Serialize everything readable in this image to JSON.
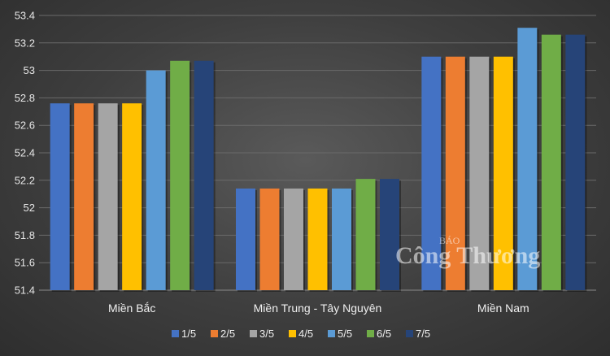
{
  "chart_data": {
    "type": "bar",
    "categories": [
      "Miền Bắc",
      "Miền Trung - Tây Nguyên",
      "Miền Nam"
    ],
    "series": [
      {
        "name": "1/5",
        "values": [
          52.76,
          52.14,
          53.1
        ]
      },
      {
        "name": "2/5",
        "values": [
          52.76,
          52.14,
          53.1
        ]
      },
      {
        "name": "3/5",
        "values": [
          52.76,
          52.14,
          53.1
        ]
      },
      {
        "name": "4/5",
        "values": [
          52.76,
          52.14,
          53.1
        ]
      },
      {
        "name": "5/5",
        "values": [
          53.0,
          52.14,
          53.31
        ]
      },
      {
        "name": "6/5",
        "values": [
          53.07,
          52.21,
          53.26
        ]
      },
      {
        "name": "7/5",
        "values": [
          53.07,
          52.21,
          53.26
        ]
      }
    ],
    "colors": [
      "#4472c4",
      "#ed7d31",
      "#a5a5a5",
      "#ffc000",
      "#5b9bd5",
      "#70ad47",
      "#264478"
    ],
    "yticks": [
      "51.4",
      "51.6",
      "51.8",
      "52",
      "52.2",
      "52.4",
      "52.6",
      "52.8",
      "53",
      "53.2",
      "53.4"
    ],
    "ylim": [
      51.4,
      53.4
    ],
    "grid": true,
    "legend_position": "bottom"
  },
  "watermark": {
    "line1": "BÁO",
    "line2": "Công Thương"
  }
}
